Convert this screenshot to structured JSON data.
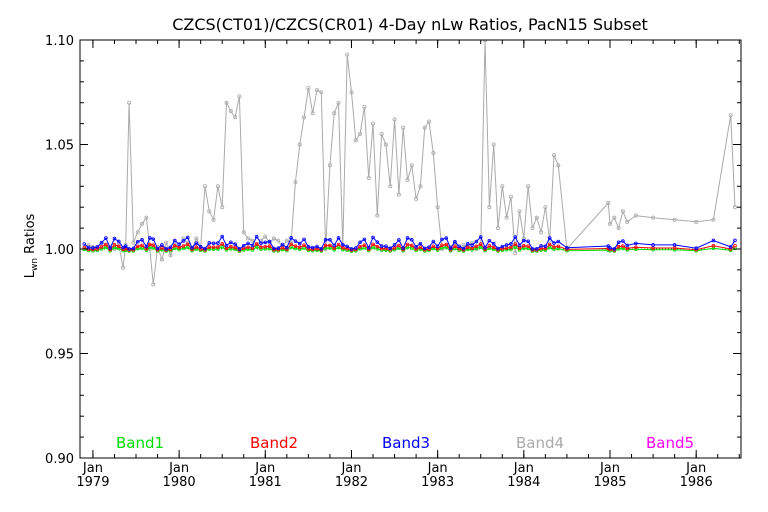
{
  "chart_data": {
    "type": "line",
    "title": "CZCS(CT01)/CZCS(CR01) 4-Day nLw Ratios, PacN15 Subset",
    "ylabel_main": "L",
    "ylabel_sub": "wn",
    "ylabel_rest": " Ratios",
    "ylim": [
      0.9,
      1.1
    ],
    "xlim": [
      1978.85,
      1986.52
    ],
    "yticks": [
      {
        "value": 0.9,
        "label": "0.90"
      },
      {
        "value": 0.95,
        "label": "0.95"
      },
      {
        "value": 1.0,
        "label": "1.00"
      },
      {
        "value": 1.05,
        "label": "1.05"
      },
      {
        "value": 1.1,
        "label": "1.10"
      }
    ],
    "xticks": [
      {
        "value": 1979.0,
        "month": "Jan",
        "year": "1979"
      },
      {
        "value": 1980.0,
        "month": "Jan",
        "year": "1980"
      },
      {
        "value": 1981.0,
        "month": "Jan",
        "year": "1981"
      },
      {
        "value": 1982.0,
        "month": "Jan",
        "year": "1982"
      },
      {
        "value": 1983.0,
        "month": "Jan",
        "year": "1983"
      },
      {
        "value": 1984.0,
        "month": "Jan",
        "year": "1984"
      },
      {
        "value": 1985.0,
        "month": "Jan",
        "year": "1985"
      },
      {
        "value": 1986.0,
        "month": "Jan",
        "year": "1986"
      }
    ],
    "reference_line": {
      "value": 1.0,
      "color": "#00aa00"
    },
    "grid": false,
    "legend_position": "bottom",
    "series": [
      {
        "name": "Band4",
        "color": "#aaaaaa",
        "points": [
          [
            1978.9,
            1.0
          ],
          [
            1978.95,
            1.002
          ],
          [
            1979.0,
            1.001
          ],
          [
            1979.05,
            1.0
          ],
          [
            1979.1,
            1.003
          ],
          [
            1979.15,
            1.002
          ],
          [
            1979.2,
            1.001
          ],
          [
            1979.25,
            1.0
          ],
          [
            1979.3,
            1.002
          ],
          [
            1979.35,
            0.991
          ],
          [
            1979.38,
            1.002
          ],
          [
            1979.42,
            1.07
          ],
          [
            1979.47,
            1.003
          ],
          [
            1979.52,
            1.008
          ],
          [
            1979.57,
            1.012
          ],
          [
            1979.62,
            1.015
          ],
          [
            1979.66,
            1.0
          ],
          [
            1979.7,
            0.983
          ],
          [
            1979.75,
            1.001
          ],
          [
            1979.8,
            0.995
          ],
          [
            1979.85,
            1.003
          ],
          [
            1979.9,
            0.997
          ],
          [
            1979.95,
            1.002
          ],
          [
            1980.0,
            1.001
          ],
          [
            1980.05,
            1.005
          ],
          [
            1980.1,
            1.003
          ],
          [
            1980.15,
            1.0
          ],
          [
            1980.2,
            1.005
          ],
          [
            1980.25,
            1.001
          ],
          [
            1980.3,
            1.03
          ],
          [
            1980.35,
            1.018
          ],
          [
            1980.4,
            1.014
          ],
          [
            1980.45,
            1.03
          ],
          [
            1980.5,
            1.02
          ],
          [
            1980.55,
            1.07
          ],
          [
            1980.6,
            1.066
          ],
          [
            1980.65,
            1.063
          ],
          [
            1980.7,
            1.073
          ],
          [
            1980.75,
            1.008
          ],
          [
            1980.8,
            1.005
          ],
          [
            1980.85,
            1.004
          ],
          [
            1980.9,
            1.002
          ],
          [
            1980.95,
            1.004
          ],
          [
            1981.0,
            1.006
          ],
          [
            1981.05,
            1.003
          ],
          [
            1981.1,
            1.005
          ],
          [
            1981.15,
            1.004
          ],
          [
            1981.2,
            1.001
          ],
          [
            1981.25,
            1.004
          ],
          [
            1981.3,
            1.003
          ],
          [
            1981.35,
            1.032
          ],
          [
            1981.4,
            1.05
          ],
          [
            1981.45,
            1.063
          ],
          [
            1981.5,
            1.077
          ],
          [
            1981.55,
            1.065
          ],
          [
            1981.6,
            1.076
          ],
          [
            1981.65,
            1.075
          ],
          [
            1981.7,
            1.0
          ],
          [
            1981.75,
            1.04
          ],
          [
            1981.8,
            1.065
          ],
          [
            1981.85,
            1.07
          ],
          [
            1981.9,
            1.001
          ],
          [
            1981.95,
            1.093
          ],
          [
            1982.0,
            1.075
          ],
          [
            1982.05,
            1.052
          ],
          [
            1982.1,
            1.055
          ],
          [
            1982.15,
            1.068
          ],
          [
            1982.2,
            1.034
          ],
          [
            1982.25,
            1.06
          ],
          [
            1982.3,
            1.016
          ],
          [
            1982.35,
            1.055
          ],
          [
            1982.4,
            1.05
          ],
          [
            1982.45,
            1.03
          ],
          [
            1982.5,
            1.062
          ],
          [
            1982.55,
            1.026
          ],
          [
            1982.6,
            1.058
          ],
          [
            1982.65,
            1.033
          ],
          [
            1982.7,
            1.04
          ],
          [
            1982.75,
            1.024
          ],
          [
            1982.8,
            1.03
          ],
          [
            1982.85,
            1.058
          ],
          [
            1982.9,
            1.061
          ],
          [
            1982.95,
            1.046
          ],
          [
            1983.0,
            1.02
          ],
          [
            1983.05,
            1.0
          ],
          [
            1983.1,
            1.002
          ],
          [
            1983.15,
            1.001
          ],
          [
            1983.2,
            1.003
          ],
          [
            1983.25,
            1.0
          ],
          [
            1983.3,
            1.002
          ],
          [
            1983.35,
            1.001
          ],
          [
            1983.4,
            1.003
          ],
          [
            1983.45,
            1.0
          ],
          [
            1983.5,
            1.001
          ],
          [
            1983.55,
            1.1
          ],
          [
            1983.6,
            1.02
          ],
          [
            1983.65,
            1.05
          ],
          [
            1983.7,
            1.01
          ],
          [
            1983.75,
            1.03
          ],
          [
            1983.8,
            1.015
          ],
          [
            1983.85,
            1.025
          ],
          [
            1983.9,
            0.998
          ],
          [
            1983.95,
            1.018
          ],
          [
            1984.0,
            1.005
          ],
          [
            1984.05,
            1.03
          ],
          [
            1984.1,
            1.01
          ],
          [
            1984.15,
            1.015
          ],
          [
            1984.2,
            1.008
          ],
          [
            1984.25,
            1.02
          ],
          [
            1984.3,
            1.004
          ],
          [
            1984.35,
            1.045
          ],
          [
            1984.4,
            1.04
          ],
          [
            1984.5,
            1.0
          ],
          [
            1984.98,
            1.022
          ],
          [
            1985.0,
            1.012
          ],
          [
            1985.05,
            1.015
          ],
          [
            1985.1,
            1.01
          ],
          [
            1985.15,
            1.018
          ],
          [
            1985.2,
            1.013
          ],
          [
            1985.3,
            1.016
          ],
          [
            1985.5,
            1.015
          ],
          [
            1985.75,
            1.014
          ],
          [
            1986.0,
            1.013
          ],
          [
            1986.2,
            1.014
          ],
          [
            1986.4,
            1.064
          ],
          [
            1986.45,
            1.02
          ],
          [
            1985.0,
            1.0
          ]
        ]
      }
    ],
    "legend": [
      {
        "name": "Band1",
        "color": "#00dd00"
      },
      {
        "name": "Band2",
        "color": "#ff0000"
      },
      {
        "name": "Band3",
        "color": "#0000ff"
      },
      {
        "name": "Band4",
        "color": "#aaaaaa"
      },
      {
        "name": "Band5",
        "color": "#ff00ff"
      }
    ]
  }
}
